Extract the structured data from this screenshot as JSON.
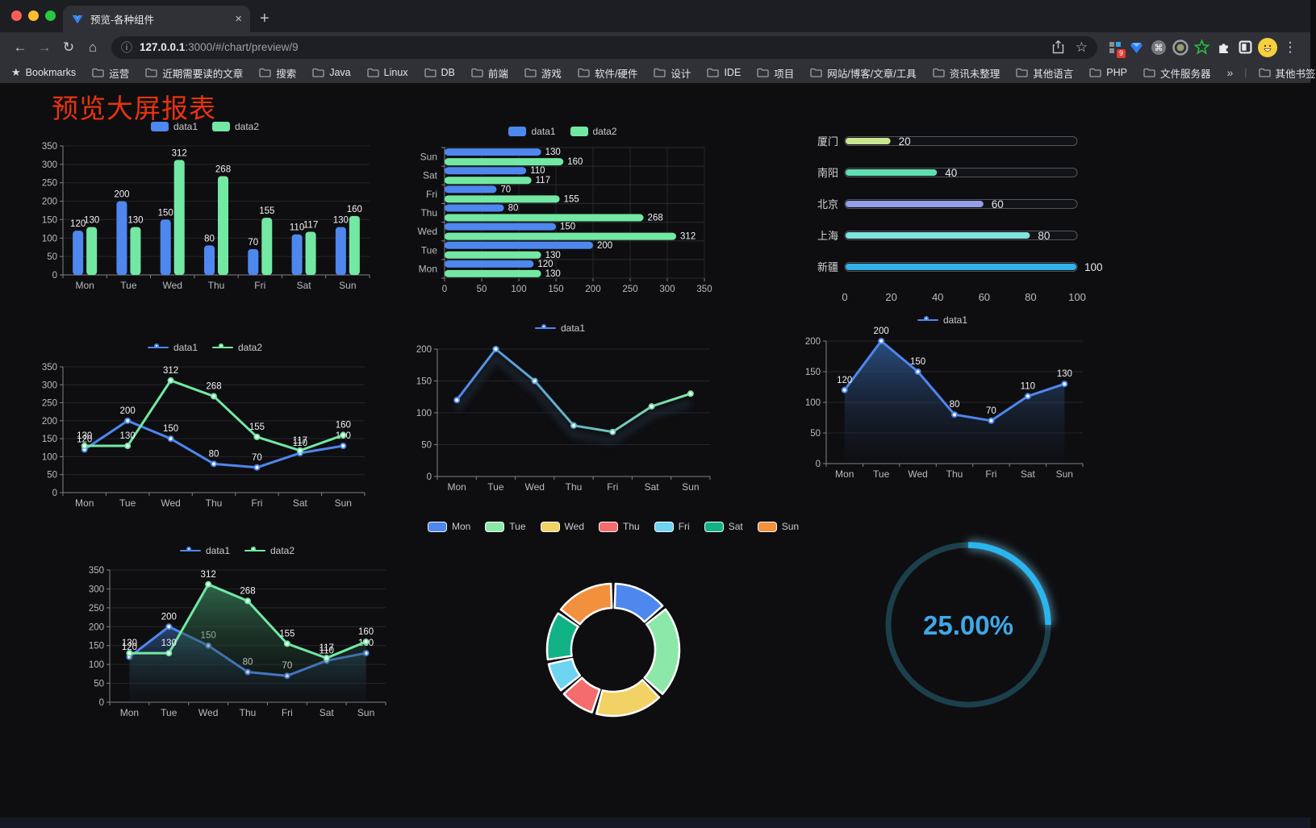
{
  "browser": {
    "tab": {
      "title": "预览-各种组件",
      "close_glyph": "×",
      "new_tab_glyph": "+"
    },
    "address": {
      "host": "127.0.0.1",
      "path": ":3000/#/chart/preview/9"
    },
    "toolbar_icons": {
      "back": "←",
      "forward": "→",
      "reload": "↻",
      "home": "⌂",
      "info": "ⓘ",
      "star": "☆",
      "menu": "⋮",
      "cmd": "⌘"
    },
    "extension_badge": "9",
    "bookmarks_bar": {
      "star_label": "Bookmarks",
      "folders": [
        "运营",
        "近期需要读的文章",
        "搜索",
        "Java",
        "Linux",
        "DB",
        "前端",
        "游戏",
        "软件/硬件",
        "设计",
        "IDE",
        "项目",
        "网站/博客/文章/工具",
        "资讯未整理",
        "其他语言",
        "PHP",
        "文件服务器"
      ],
      "overflow_glyph": "»",
      "other_bookmarks": "其他书签"
    }
  },
  "page": {
    "title": "预览大屏报表",
    "title_color": "#e8330e"
  },
  "chart_data": [
    {
      "type": "bar",
      "title": "",
      "categories": [
        "Mon",
        "Tue",
        "Wed",
        "Thu",
        "Fri",
        "Sat",
        "Sun"
      ],
      "series": [
        {
          "name": "data1",
          "color": "#4e87ee",
          "values": [
            120,
            200,
            150,
            80,
            70,
            110,
            130
          ]
        },
        {
          "name": "data2",
          "color": "#73e8a3",
          "values": [
            130,
            130,
            312,
            268,
            155,
            117,
            160
          ]
        }
      ],
      "ylim": [
        0,
        350
      ],
      "yticks": [
        0,
        50,
        100,
        150,
        200,
        250,
        300,
        350
      ],
      "grid": true,
      "legend_position": "top",
      "value_labels": true
    },
    {
      "type": "hbar",
      "categories": [
        "Mon",
        "Tue",
        "Wed",
        "Thu",
        "Fri",
        "Sat",
        "Sun"
      ],
      "series": [
        {
          "name": "data1",
          "color": "#4e87ee",
          "values": [
            120,
            200,
            150,
            80,
            70,
            110,
            130
          ]
        },
        {
          "name": "data2",
          "color": "#73e8a3",
          "values": [
            130,
            130,
            312,
            268,
            155,
            117,
            160
          ]
        }
      ],
      "xlim": [
        0,
        350
      ],
      "xticks": [
        0,
        50,
        100,
        150,
        200,
        250,
        300,
        350
      ],
      "grid": true,
      "legend_position": "top",
      "value_labels": true
    },
    {
      "type": "capsule",
      "categories": [
        "厦门",
        "南阳",
        "北京",
        "上海",
        "新疆"
      ],
      "values": [
        20,
        40,
        60,
        80,
        100
      ],
      "colors": [
        "#c9e793",
        "#5fe0b1",
        "#959ee8",
        "#7fe3de",
        "#2fb3e8"
      ],
      "xlim": [
        0,
        100
      ],
      "xticks": [
        0,
        20,
        40,
        60,
        80,
        100
      ],
      "value_labels": true
    },
    {
      "type": "line",
      "categories": [
        "Mon",
        "Tue",
        "Wed",
        "Thu",
        "Fri",
        "Sat",
        "Sun"
      ],
      "series": [
        {
          "name": "data1",
          "color": "#4e87ee",
          "values": [
            120,
            200,
            150,
            80,
            70,
            110,
            130
          ]
        },
        {
          "name": "data2",
          "color": "#73e8a3",
          "values": [
            130,
            130,
            312,
            268,
            155,
            117,
            160
          ]
        }
      ],
      "ylim": [
        0,
        350
      ],
      "yticks": [
        0,
        50,
        100,
        150,
        200,
        250,
        300,
        350
      ],
      "grid": true,
      "legend_position": "top",
      "value_labels": true
    },
    {
      "type": "line",
      "variant": "gradient",
      "categories": [
        "Mon",
        "Tue",
        "Wed",
        "Thu",
        "Fri",
        "Sat",
        "Sun"
      ],
      "series": [
        {
          "name": "data1",
          "gradient": [
            "#4f87ee",
            "#7ee8a0"
          ],
          "values": [
            120,
            200,
            150,
            80,
            70,
            110,
            130
          ]
        }
      ],
      "ylim": [
        0,
        200
      ],
      "yticks": [
        0,
        50,
        100,
        150,
        200
      ],
      "grid": true,
      "legend_position": "top",
      "value_labels": false,
      "shadow": true
    },
    {
      "type": "line",
      "variant": "area",
      "categories": [
        "Mon",
        "Tue",
        "Wed",
        "Thu",
        "Fri",
        "Sat",
        "Sun"
      ],
      "series": [
        {
          "name": "data1",
          "color": "#4e87ee",
          "area": [
            "rgba(47,89,148,0.85)",
            "rgba(25,35,52,0.05)"
          ],
          "values": [
            120,
            200,
            150,
            80,
            70,
            110,
            130
          ]
        }
      ],
      "ylim": [
        0,
        200
      ],
      "yticks": [
        0,
        50,
        100,
        150,
        200
      ],
      "grid": true,
      "legend_position": "top",
      "value_labels": true
    },
    {
      "type": "line",
      "variant": "area",
      "categories": [
        "Mon",
        "Tue",
        "Wed",
        "Thu",
        "Fri",
        "Sat",
        "Sun"
      ],
      "series": [
        {
          "name": "data1",
          "color": "#4e87ee",
          "area": [
            "rgba(44,84,134,0.8)",
            "rgba(24,34,50,0.05)"
          ],
          "values": [
            120,
            200,
            150,
            80,
            70,
            110,
            130
          ]
        },
        {
          "name": "data2",
          "color": "#73e8a3",
          "area": [
            "rgba(54,124,86,0.8)",
            "rgba(24,40,32,0.05)"
          ],
          "values": [
            130,
            130,
            312,
            268,
            155,
            117,
            160
          ]
        }
      ],
      "ylim": [
        0,
        350
      ],
      "yticks": [
        0,
        50,
        100,
        150,
        200,
        250,
        300,
        350
      ],
      "grid": true,
      "legend_position": "top",
      "value_labels": true
    },
    {
      "type": "pie",
      "donut": true,
      "legend_position": "top",
      "categories": [
        "Mon",
        "Tue",
        "Wed",
        "Thu",
        "Fri",
        "Sat",
        "Sun"
      ],
      "values": [
        120,
        200,
        150,
        80,
        70,
        110,
        130
      ],
      "colors": [
        "#4e87ee",
        "#8ce8a8",
        "#f2d264",
        "#f56c6c",
        "#6fd3f2",
        "#12b287",
        "#f2913d"
      ]
    },
    {
      "type": "gauge",
      "value": 25,
      "max": 100,
      "label": "25.00%",
      "color": "#2ab5ef",
      "track_color": "#1c3f4c",
      "text_color": "#3fa8e8"
    }
  ]
}
